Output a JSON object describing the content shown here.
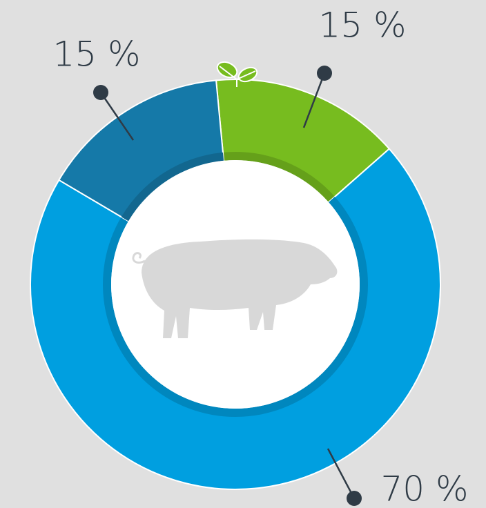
{
  "chart_data": {
    "type": "pie",
    "values": [
      15,
      70,
      15
    ],
    "value_labels": [
      "15 %",
      "70 %",
      "15 %"
    ],
    "colors": [
      "#77bc1f",
      "#009fe0",
      "#1579a8"
    ]
  }
}
